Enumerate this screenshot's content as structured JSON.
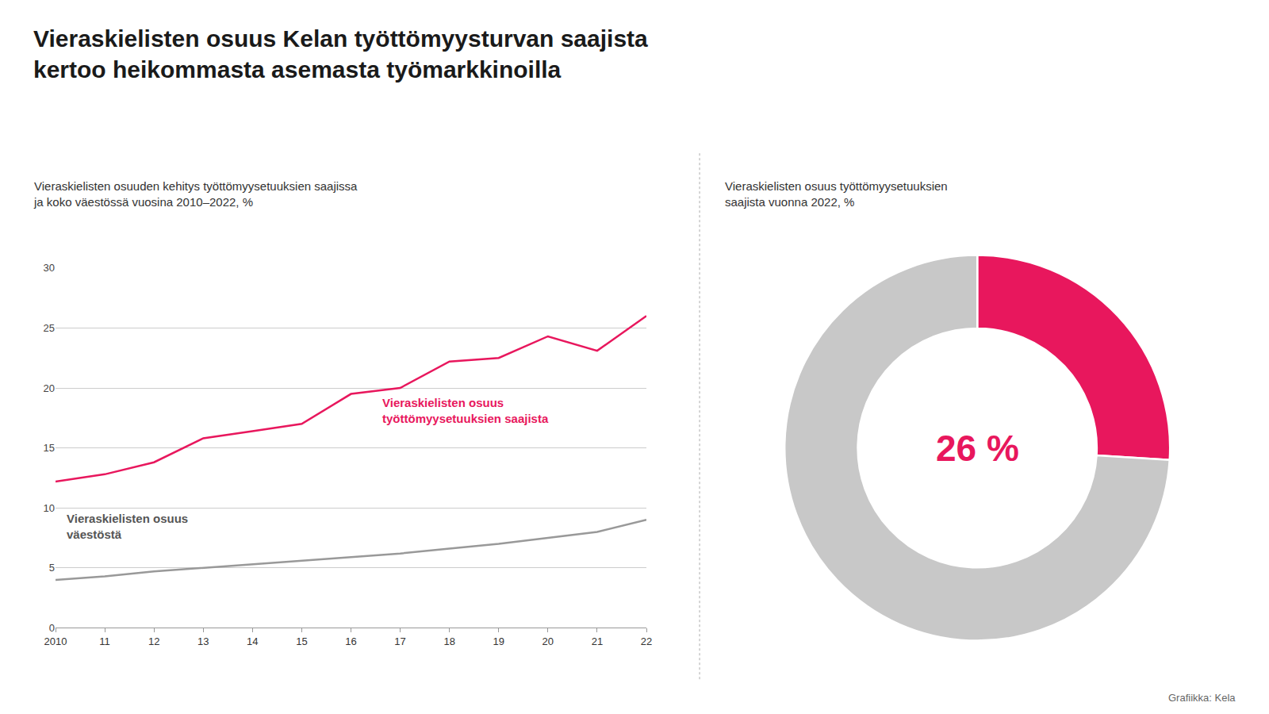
{
  "title": "Vieraskielisten osuus Kelan työttömyysturvan saajista\nkertoo heikommasta asemasta työmarkkinoilla",
  "annotations": [
    {
      "text": "Grafiikka: Kela"
    }
  ],
  "chart_data": [
    {
      "type": "line",
      "subtitle": "Vieraskielisten osuuden kehitys työttömyysetuuksien saajissa\nja koko väestössä vuosina 2010–2022, %",
      "x": [
        2010,
        2011,
        2012,
        2013,
        2014,
        2015,
        2016,
        2017,
        2018,
        2019,
        2020,
        2021,
        2022
      ],
      "series": [
        {
          "color": "#e8175d",
          "values": [
            12.2,
            12.8,
            13.8,
            15.8,
            16.4,
            17.0,
            19.5,
            20.0,
            22.2,
            22.5,
            24.3,
            23.1,
            26.0
          ]
        },
        {
          "color": "#999999",
          "values": [
            4.0,
            4.3,
            4.7,
            5.0,
            5.3,
            5.6,
            5.9,
            6.2,
            6.6,
            7.0,
            7.5,
            8.0,
            9.0
          ]
        }
      ],
      "xlim": [
        2010,
        2022
      ],
      "xticks": [
        2010,
        {
          "value": 2011,
          "label": "11"
        },
        {
          "value": 2012,
          "label": "12"
        },
        {
          "value": 2013,
          "label": "13"
        },
        {
          "value": 2014,
          "label": "14"
        },
        {
          "value": 2015,
          "label": "15"
        },
        {
          "value": 2016,
          "label": "16"
        },
        {
          "value": 2017,
          "label": "17"
        },
        {
          "value": 2018,
          "label": "18"
        },
        {
          "value": 2019,
          "label": "19"
        },
        {
          "value": 2020,
          "label": "20"
        },
        {
          "value": 2021,
          "label": "21"
        },
        {
          "value": 2022,
          "label": "22"
        }
      ],
      "ylim": [
        0,
        30
      ],
      "yticks": [
        0,
        5,
        10,
        15,
        20,
        25,
        30
      ],
      "grid": true,
      "annotations": [
        {
          "text": "Vieraskielisten osuus\ntyöttömyysetuuksien saajista",
          "x": 2016.6,
          "y": 19.5,
          "color": "#e8175d"
        },
        {
          "text": "Vieraskielisten osuus\nväestöstä",
          "x": 2010.2,
          "y": 9.8,
          "color": "#555555"
        }
      ]
    },
    {
      "type": "pie",
      "subtitle": "Vieraskielisten osuus työttömyysetuuksien\nsaajista vuonna 2022, %",
      "values": [
        26,
        74
      ],
      "colors": [
        "#e8175d",
        "#c8c8c8"
      ],
      "data_labels": false,
      "annotations": [
        {
          "text": "26 %",
          "color": "#e8175d"
        }
      ]
    }
  ]
}
